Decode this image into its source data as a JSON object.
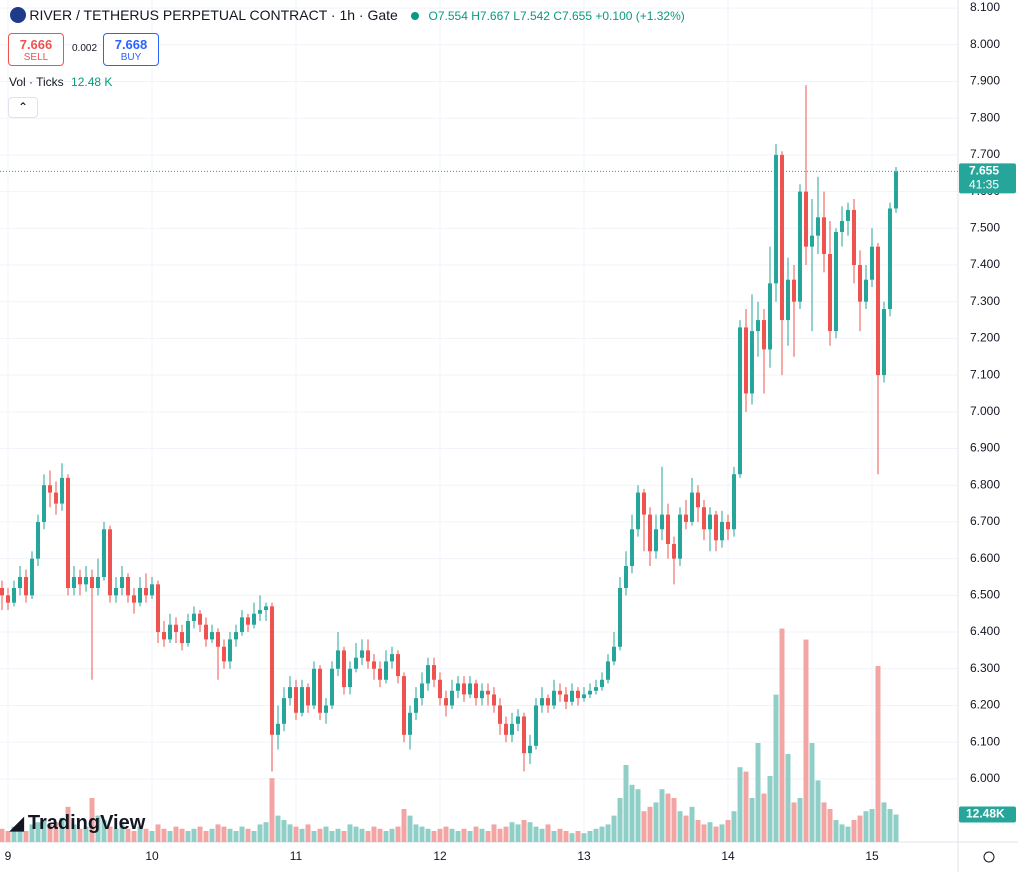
{
  "header": {
    "symbol": "RIVER / TETHERUS PERPETUAL CONTRACT · 1h · Gate",
    "ohlc": [
      "O7.554",
      "H7.667",
      "L7.542",
      "C7.655"
    ],
    "change": "+0.100 (+1.32%)"
  },
  "trade": {
    "sell_price": "7.666",
    "sell": "SELL",
    "spread": "0.002",
    "buy_price": "7.668",
    "buy": "BUY"
  },
  "indicator": {
    "name": "Vol · Ticks",
    "value": "12.48 K"
  },
  "logo": "TradingView",
  "chart_data": {
    "type": "candlestick",
    "categories": [
      null,
      "9",
      null,
      null,
      null,
      null,
      null,
      null,
      null,
      null,
      null,
      null,
      null,
      null,
      null,
      null,
      null,
      null,
      null,
      null,
      null,
      null,
      null,
      null,
      null,
      "10",
      null,
      null,
      null,
      null,
      null,
      null,
      null,
      null,
      null,
      null,
      null,
      null,
      null,
      null,
      null,
      null,
      null,
      null,
      null,
      null,
      null,
      null,
      null,
      "11",
      null,
      null,
      null,
      null,
      null,
      null,
      null,
      null,
      null,
      null,
      null,
      null,
      null,
      null,
      null,
      null,
      null,
      null,
      null,
      null,
      null,
      null,
      null,
      "12",
      null,
      null,
      null,
      null,
      null,
      null,
      null,
      null,
      null,
      null,
      null,
      null,
      null,
      null,
      null,
      null,
      null,
      null,
      null,
      null,
      null,
      null,
      null,
      "13",
      null,
      null,
      null,
      null,
      null,
      null,
      null,
      null,
      null,
      null,
      null,
      null,
      null,
      null,
      null,
      null,
      null,
      null,
      null,
      null,
      null,
      null,
      null,
      "14",
      null,
      null,
      null,
      null,
      null,
      null,
      null,
      null,
      null,
      null,
      null,
      null,
      null,
      null,
      null,
      null,
      null,
      null,
      null,
      null,
      null,
      null,
      null,
      "15",
      null,
      null,
      null,
      null
    ],
    "open": [
      6.52,
      6.5,
      6.48,
      6.52,
      6.55,
      6.5,
      6.6,
      6.7,
      6.8,
      6.78,
      6.75,
      6.82,
      6.52,
      6.55,
      6.53,
      6.55,
      6.52,
      6.55,
      6.68,
      6.5,
      6.52,
      6.55,
      6.5,
      6.48,
      6.52,
      6.5,
      6.53,
      6.4,
      6.38,
      6.42,
      6.4,
      6.37,
      6.43,
      6.45,
      6.42,
      6.38,
      6.4,
      6.36,
      6.32,
      6.38,
      6.4,
      6.44,
      6.42,
      6.45,
      6.46,
      6.47,
      6.12,
      6.15,
      6.22,
      6.25,
      6.18,
      6.25,
      6.2,
      6.3,
      6.18,
      6.2,
      6.3,
      6.35,
      6.25,
      6.3,
      6.33,
      6.35,
      6.32,
      6.3,
      6.27,
      6.32,
      6.34,
      6.28,
      6.12,
      6.18,
      6.22,
      6.26,
      6.31,
      6.27,
      6.22,
      6.2,
      6.24,
      6.26,
      6.23,
      6.26,
      6.22,
      6.24,
      6.23,
      6.2,
      6.15,
      6.12,
      6.15,
      6.17,
      6.07,
      6.09,
      6.2,
      6.22,
      6.2,
      6.24,
      6.23,
      6.21,
      6.24,
      6.22,
      6.23,
      6.24,
      6.25,
      6.27,
      6.32,
      6.36,
      6.52,
      6.58,
      6.68,
      6.78,
      6.72,
      6.62,
      6.68,
      6.72,
      6.64,
      6.6,
      6.72,
      6.7,
      6.78,
      6.74,
      6.68,
      6.72,
      6.65,
      6.7,
      6.68,
      6.83,
      7.23,
      7.05,
      7.22,
      7.25,
      7.17,
      7.35,
      7.7,
      7.25,
      7.36,
      7.3,
      7.6,
      7.45,
      7.48,
      7.53,
      7.43,
      7.22,
      7.49,
      7.52,
      7.55,
      7.4,
      7.3,
      7.36,
      7.45,
      7.1,
      7.28,
      7.554
    ],
    "high": [
      6.54,
      6.52,
      6.54,
      6.58,
      6.57,
      6.62,
      6.72,
      6.83,
      6.84,
      6.81,
      6.86,
      6.83,
      6.58,
      6.57,
      6.58,
      6.57,
      6.6,
      6.7,
      6.69,
      6.55,
      6.58,
      6.56,
      6.52,
      6.55,
      6.56,
      6.55,
      6.54,
      6.43,
      6.45,
      6.44,
      6.42,
      6.45,
      6.47,
      6.46,
      6.44,
      6.42,
      6.41,
      6.38,
      6.4,
      6.42,
      6.46,
      6.45,
      6.48,
      6.5,
      6.48,
      6.48,
      6.2,
      6.25,
      6.28,
      6.27,
      6.27,
      6.26,
      6.32,
      6.31,
      6.22,
      6.32,
      6.4,
      6.36,
      6.32,
      6.37,
      6.38,
      6.38,
      6.34,
      6.32,
      6.35,
      6.36,
      6.35,
      6.29,
      6.2,
      6.25,
      6.29,
      6.33,
      6.33,
      6.29,
      6.24,
      6.27,
      6.28,
      6.28,
      6.28,
      6.27,
      6.26,
      6.26,
      6.25,
      6.22,
      6.17,
      6.18,
      6.19,
      6.18,
      6.12,
      6.22,
      6.25,
      6.23,
      6.27,
      6.26,
      6.25,
      6.26,
      6.25,
      6.25,
      6.26,
      6.27,
      6.29,
      6.34,
      6.4,
      6.55,
      6.62,
      6.72,
      6.8,
      6.79,
      6.74,
      6.72,
      6.85,
      6.75,
      6.66,
      6.74,
      6.76,
      6.82,
      6.8,
      6.76,
      6.74,
      6.73,
      6.73,
      6.72,
      6.85,
      7.25,
      7.28,
      7.32,
      7.3,
      7.28,
      7.45,
      7.73,
      7.71,
      7.42,
      7.4,
      7.62,
      7.89,
      7.58,
      7.64,
      7.6,
      7.52,
      7.5,
      7.56,
      7.57,
      7.58,
      7.44,
      7.4,
      7.5,
      7.46,
      7.3,
      7.57,
      7.667
    ],
    "low": [
      6.46,
      6.46,
      6.47,
      6.5,
      6.48,
      6.49,
      6.58,
      6.68,
      6.74,
      6.72,
      6.73,
      6.5,
      6.5,
      6.5,
      6.51,
      6.27,
      6.5,
      6.54,
      6.48,
      6.48,
      6.5,
      6.48,
      6.45,
      6.47,
      6.48,
      6.49,
      6.37,
      6.36,
      6.37,
      6.37,
      6.35,
      6.36,
      6.41,
      6.4,
      6.36,
      6.37,
      6.27,
      6.3,
      6.3,
      6.36,
      6.39,
      6.4,
      6.41,
      6.43,
      6.43,
      6.02,
      6.08,
      6.13,
      6.2,
      6.16,
      6.17,
      6.18,
      6.19,
      6.16,
      6.15,
      6.19,
      6.28,
      6.23,
      6.23,
      6.29,
      6.31,
      6.3,
      6.27,
      6.25,
      6.26,
      6.3,
      6.26,
      6.1,
      6.08,
      6.16,
      6.2,
      6.24,
      6.25,
      6.2,
      6.17,
      6.19,
      6.22,
      6.21,
      6.22,
      6.2,
      6.2,
      6.2,
      6.18,
      6.12,
      6.1,
      6.1,
      6.13,
      6.02,
      6.04,
      6.08,
      6.18,
      6.18,
      6.19,
      6.21,
      6.19,
      6.2,
      6.2,
      6.21,
      6.22,
      6.23,
      6.24,
      6.26,
      6.31,
      6.35,
      6.5,
      6.56,
      6.66,
      6.62,
      6.58,
      6.6,
      6.65,
      6.6,
      6.53,
      6.58,
      6.68,
      6.69,
      6.7,
      6.65,
      6.62,
      6.62,
      6.63,
      6.65,
      6.66,
      6.82,
      7.0,
      7.02,
      7.15,
      7.05,
      7.12,
      7.3,
      7.1,
      7.18,
      7.15,
      7.28,
      7.4,
      7.22,
      7.43,
      7.38,
      7.18,
      7.2,
      7.45,
      7.48,
      7.35,
      7.22,
      7.28,
      7.34,
      6.83,
      7.08,
      7.26,
      7.542
    ],
    "close": [
      6.5,
      6.48,
      6.52,
      6.55,
      6.5,
      6.6,
      6.7,
      6.8,
      6.78,
      6.75,
      6.82,
      6.52,
      6.55,
      6.53,
      6.55,
      6.52,
      6.55,
      6.68,
      6.5,
      6.52,
      6.55,
      6.5,
      6.48,
      6.52,
      6.5,
      6.53,
      6.4,
      6.38,
      6.42,
      6.4,
      6.37,
      6.43,
      6.45,
      6.42,
      6.38,
      6.4,
      6.36,
      6.32,
      6.38,
      6.4,
      6.44,
      6.42,
      6.45,
      6.46,
      6.47,
      6.12,
      6.15,
      6.22,
      6.25,
      6.18,
      6.25,
      6.2,
      6.3,
      6.18,
      6.2,
      6.3,
      6.35,
      6.25,
      6.3,
      6.33,
      6.35,
      6.32,
      6.3,
      6.27,
      6.32,
      6.34,
      6.28,
      6.12,
      6.18,
      6.22,
      6.26,
      6.31,
      6.27,
      6.22,
      6.2,
      6.24,
      6.26,
      6.23,
      6.26,
      6.22,
      6.24,
      6.23,
      6.2,
      6.15,
      6.12,
      6.15,
      6.17,
      6.07,
      6.09,
      6.2,
      6.22,
      6.2,
      6.24,
      6.23,
      6.21,
      6.24,
      6.22,
      6.23,
      6.24,
      6.25,
      6.27,
      6.32,
      6.36,
      6.52,
      6.58,
      6.68,
      6.78,
      6.72,
      6.62,
      6.68,
      6.72,
      6.64,
      6.6,
      6.72,
      6.7,
      6.78,
      6.74,
      6.68,
      6.72,
      6.65,
      6.7,
      6.68,
      6.83,
      7.23,
      7.05,
      7.22,
      7.25,
      7.17,
      7.35,
      7.7,
      7.25,
      7.36,
      7.3,
      7.6,
      7.45,
      7.48,
      7.53,
      7.43,
      7.22,
      7.49,
      7.52,
      7.55,
      7.4,
      7.3,
      7.36,
      7.45,
      7.1,
      7.28,
      7.554,
      7.655
    ],
    "volume": [
      6,
      5,
      7,
      6,
      5,
      8,
      9,
      10,
      8,
      9,
      11,
      16,
      8,
      6,
      7,
      20,
      12,
      10,
      7,
      6,
      8,
      6,
      5,
      7,
      6,
      5,
      8,
      6,
      5,
      7,
      6,
      5,
      6,
      7,
      5,
      6,
      8,
      7,
      6,
      5,
      7,
      6,
      5,
      8,
      9,
      29,
      12,
      10,
      8,
      7,
      6,
      8,
      5,
      6,
      7,
      5,
      6,
      5,
      8,
      7,
      6,
      5,
      7,
      6,
      5,
      6,
      7,
      15,
      12,
      8,
      7,
      6,
      5,
      6,
      7,
      6,
      5,
      6,
      5,
      7,
      6,
      5,
      8,
      6,
      7,
      9,
      8,
      10,
      9,
      7,
      6,
      8,
      5,
      6,
      5,
      4,
      5,
      4,
      5,
      6,
      7,
      8,
      12,
      20,
      35,
      26,
      24,
      14,
      16,
      18,
      24,
      22,
      20,
      14,
      12,
      16,
      10,
      8,
      9,
      7,
      8,
      10,
      14,
      34,
      32,
      20,
      45,
      22,
      30,
      67,
      97,
      40,
      18,
      20,
      92,
      45,
      28,
      18,
      15,
      10,
      8,
      7,
      10,
      12,
      14,
      15,
      80,
      18,
      15,
      12.48
    ],
    "volume_last_label": "12.48K",
    "last_price_label": "7.655",
    "countdown": "41:35",
    "up_color": "#26a69a",
    "down_color": "#ef5350",
    "volume_up_color": "#8fcfc7",
    "volume_down_color": "#f3a5a3",
    "ylim": [
      5.828,
      8.122
    ],
    "yticks": [
      {
        "value": 6,
        "label": "6.000"
      },
      {
        "value": 6.1,
        "label": "6.100"
      },
      {
        "value": 6.2,
        "label": "6.200"
      },
      {
        "value": 6.3,
        "label": "6.300"
      },
      {
        "value": 6.4,
        "label": "6.400"
      },
      {
        "value": 6.5,
        "label": "6.500"
      },
      {
        "value": 6.6,
        "label": "6.600"
      },
      {
        "value": 6.7,
        "label": "6.700"
      },
      {
        "value": 6.8,
        "label": "6.800"
      },
      {
        "value": 6.9,
        "label": "6.900"
      },
      {
        "value": 7,
        "label": "7.000"
      },
      {
        "value": 7.1,
        "label": "7.100"
      },
      {
        "value": 7.2,
        "label": "7.200"
      },
      {
        "value": 7.3,
        "label": "7.300"
      },
      {
        "value": 7.4,
        "label": "7.400"
      },
      {
        "value": 7.5,
        "label": "7.500"
      },
      {
        "value": 7.6,
        "label": "7.600"
      },
      {
        "value": 7.7,
        "label": "7.700"
      },
      {
        "value": 7.8,
        "label": "7.800"
      },
      {
        "value": 7.9,
        "label": "7.900"
      },
      {
        "value": 8,
        "label": "8.000"
      },
      {
        "value": 8.1,
        "label": "8.100"
      }
    ],
    "vlim": [
      0,
      100
    ],
    "grid": true
  }
}
